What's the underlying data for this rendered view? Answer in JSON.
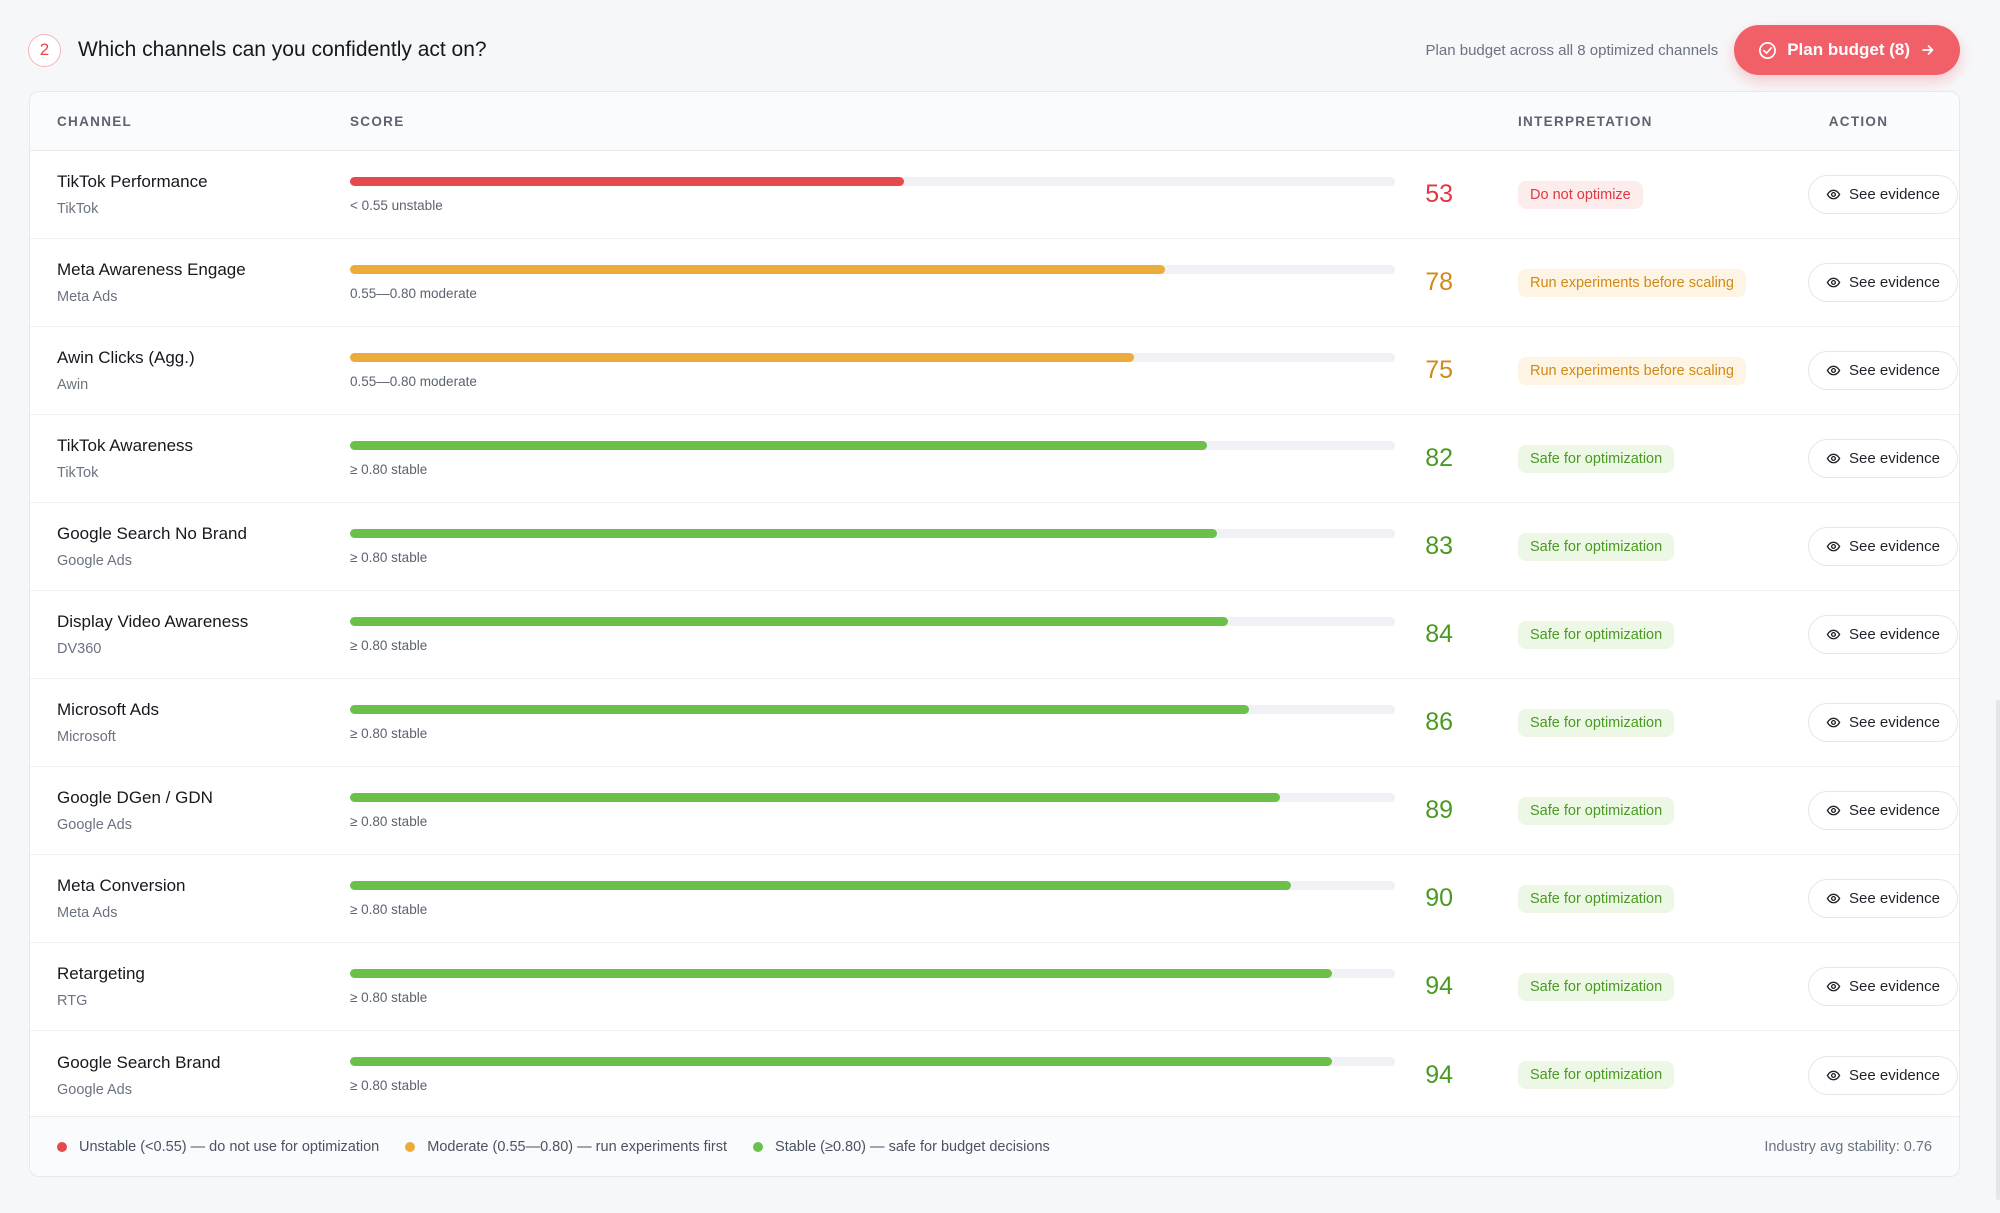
{
  "header": {
    "step": "2",
    "title": "Which channels can you confidently act on?",
    "plan_hint": "Plan budget across all 8 optimized channels",
    "plan_button": "Plan budget (8)"
  },
  "table": {
    "columns": {
      "channel": "CHANNEL",
      "score": "SCORE",
      "interpretation": "INTERPRETATION",
      "action": "ACTION"
    },
    "action_label": "See evidence",
    "rows": [
      {
        "name": "TikTok Performance",
        "platform": "TikTok",
        "score": 53,
        "fill": 0.53,
        "caption": "< 0.55 unstable",
        "interpretation": "Do not optimize",
        "level": "red"
      },
      {
        "name": "Meta Awareness Engage",
        "platform": "Meta Ads",
        "score": 78,
        "fill": 0.78,
        "caption": "0.55—0.80 moderate",
        "interpretation": "Run experiments before scaling",
        "level": "amber"
      },
      {
        "name": "Awin Clicks (Agg.)",
        "platform": "Awin",
        "score": 75,
        "fill": 0.75,
        "caption": "0.55—0.80 moderate",
        "interpretation": "Run experiments before scaling",
        "level": "amber"
      },
      {
        "name": "TikTok Awareness",
        "platform": "TikTok",
        "score": 82,
        "fill": 0.82,
        "caption": "≥ 0.80 stable",
        "interpretation": "Safe for optimization",
        "level": "green"
      },
      {
        "name": "Google Search No Brand",
        "platform": "Google Ads",
        "score": 83,
        "fill": 0.83,
        "caption": "≥ 0.80 stable",
        "interpretation": "Safe for optimization",
        "level": "green"
      },
      {
        "name": "Display Video Awareness",
        "platform": "DV360",
        "score": 84,
        "fill": 0.84,
        "caption": "≥ 0.80 stable",
        "interpretation": "Safe for optimization",
        "level": "green"
      },
      {
        "name": "Microsoft Ads",
        "platform": "Microsoft",
        "score": 86,
        "fill": 0.86,
        "caption": "≥ 0.80 stable",
        "interpretation": "Safe for optimization",
        "level": "green"
      },
      {
        "name": "Google DGen / GDN",
        "platform": "Google Ads",
        "score": 89,
        "fill": 0.89,
        "caption": "≥ 0.80 stable",
        "interpretation": "Safe for optimization",
        "level": "green"
      },
      {
        "name": "Meta Conversion",
        "platform": "Meta Ads",
        "score": 90,
        "fill": 0.9,
        "caption": "≥ 0.80 stable",
        "interpretation": "Safe for optimization",
        "level": "green"
      },
      {
        "name": "Retargeting",
        "platform": "RTG",
        "score": 94,
        "fill": 0.94,
        "caption": "≥ 0.80 stable",
        "interpretation": "Safe for optimization",
        "level": "green"
      },
      {
        "name": "Google Search Brand",
        "platform": "Google Ads",
        "score": 94,
        "fill": 0.94,
        "caption": "≥ 0.80 stable",
        "interpretation": "Safe for optimization",
        "level": "green"
      }
    ]
  },
  "legend": {
    "unstable": "Unstable (<0.55) — do not use for optimization",
    "moderate": "Moderate (0.55—0.80) — run experiments first",
    "stable": "Stable (≥0.80) — safe for budget decisions",
    "industry": "Industry avg stability: 0.76"
  },
  "colors": {
    "red": "#e5484d",
    "amber": "#ecac3c",
    "green": "#6cc04a",
    "red_text": "#e0383e",
    "amber_text": "#d08a17",
    "green_text": "#4a9a22",
    "accent": "#f15f68"
  }
}
